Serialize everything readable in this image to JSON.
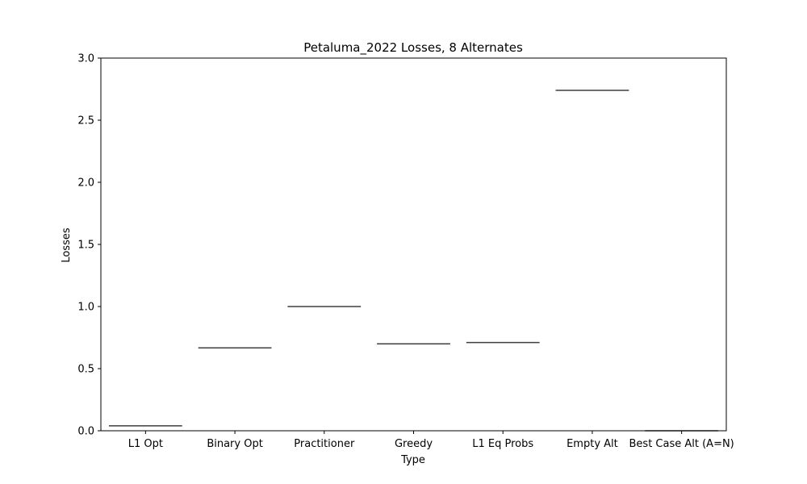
{
  "chart_data": {
    "type": "box",
    "title": "Petaluma_2022 Losses, 8 Alternates",
    "xlabel": "Type",
    "ylabel": "Losses",
    "categories": [
      "L1 Opt",
      "Binary Opt",
      "Practitioner",
      "Greedy",
      "L1 Eq Probs",
      "Empty Alt",
      "Best Case Alt (A=N)"
    ],
    "values": [
      0.04,
      0.667,
      1.0,
      0.7,
      0.71,
      2.74,
      0.0
    ],
    "ylim": [
      0,
      3.0
    ],
    "yticks": [
      "0.0",
      "0.5",
      "1.0",
      "1.5",
      "2.0",
      "2.5",
      "3.0"
    ],
    "ytick_values": [
      0,
      0.5,
      1.0,
      1.5,
      2.0,
      2.5,
      3.0
    ],
    "grid": false,
    "line_color": "#3f3f3f"
  }
}
